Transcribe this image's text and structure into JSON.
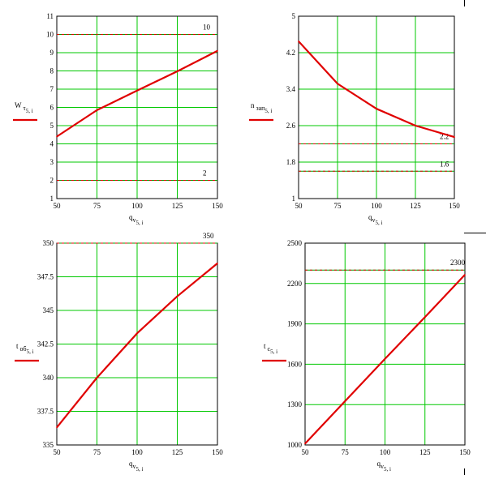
{
  "chart_data": [
    {
      "type": "line",
      "x": [
        50,
        75,
        100,
        125,
        150
      ],
      "xticks": [
        "50",
        "75",
        "100",
        "125",
        "150"
      ],
      "yticks": [
        "1",
        "2",
        "3",
        "4",
        "5",
        "6",
        "7",
        "8",
        "9",
        "10",
        "11"
      ],
      "xlim": [
        50,
        150
      ],
      "ylim": [
        1,
        11
      ],
      "grid": true,
      "xlabel": "q",
      "xlabel_sub": "v",
      "xlabel_subsub": "5, i",
      "ylabel": "W",
      "ylabel_sub": "τ",
      "ylabel_subsub": "5, i",
      "series": [
        {
          "values": [
            4.4,
            5.85,
            6.92,
            7.98,
            9.1
          ],
          "color": "#e00000"
        }
      ],
      "reference_lines": [
        {
          "value": 10,
          "label": "10",
          "color": "#e00000"
        },
        {
          "value": 2,
          "label": "2",
          "color": "#e00000"
        }
      ],
      "reference_color_alt": "#00a000"
    },
    {
      "type": "line",
      "x": [
        50,
        75,
        100,
        125,
        150
      ],
      "xticks": [
        "50",
        "75",
        "100",
        "125",
        "150"
      ],
      "yticks": [
        "1",
        "1.8",
        "2.6",
        "3.4",
        "4.2",
        "5"
      ],
      "xlim": [
        50,
        150
      ],
      "ylim": [
        1,
        5
      ],
      "grid": true,
      "xlabel": "q",
      "xlabel_sub": "v",
      "xlabel_subsub": "5, i",
      "ylabel": "n",
      "ylabel_sub": "зап",
      "ylabel_subsub": "5, i",
      "series": [
        {
          "values": [
            4.45,
            3.52,
            2.97,
            2.6,
            2.35
          ],
          "color": "#e00000"
        }
      ],
      "reference_lines": [
        {
          "value": 2.2,
          "label": "2.2",
          "color": "#e00000"
        },
        {
          "value": 1.6,
          "label": "1.6",
          "color": "#e00000"
        }
      ],
      "reference_color_alt": "#00a000"
    },
    {
      "type": "line",
      "x": [
        50,
        75,
        100,
        125,
        150
      ],
      "xticks": [
        "50",
        "75",
        "100",
        "125",
        "150"
      ],
      "yticks": [
        "335",
        "337.5",
        "340",
        "342.5",
        "345",
        "347.5",
        "350"
      ],
      "xlim": [
        50,
        150
      ],
      "ylim": [
        335,
        350
      ],
      "grid": true,
      "xlabel": "q",
      "xlabel_sub": "v",
      "xlabel_subsub": "5, i",
      "ylabel": "t",
      "ylabel_sub": "об",
      "ylabel_subsub": "5, i",
      "series": [
        {
          "values": [
            336.3,
            340.0,
            343.3,
            346.05,
            348.5
          ],
          "color": "#e00000"
        }
      ],
      "reference_lines": [
        {
          "value": 350,
          "label": "350",
          "color": "#e00000"
        }
      ],
      "reference_color_alt": "#00a000"
    },
    {
      "type": "line",
      "x": [
        50,
        75,
        100,
        125,
        150
      ],
      "xticks": [
        "50",
        "75",
        "100",
        "125",
        "150"
      ],
      "yticks": [
        "1000",
        "1300",
        "1600",
        "1900",
        "2200",
        "2500"
      ],
      "xlim": [
        50,
        150
      ],
      "ylim": [
        1000,
        2500
      ],
      "grid": true,
      "xlabel": "q",
      "xlabel_sub": "v",
      "xlabel_subsub": "5, i",
      "ylabel": "t",
      "ylabel_sub": "c",
      "ylabel_subsub": "5, i",
      "series": [
        {
          "values": [
            1010,
            1325,
            1640,
            1950,
            2265
          ],
          "color": "#e00000"
        }
      ],
      "reference_lines": [
        {
          "value": 2300,
          "label": "2300",
          "color": "#e00000"
        }
      ],
      "reference_color_alt": "#00a000"
    }
  ]
}
